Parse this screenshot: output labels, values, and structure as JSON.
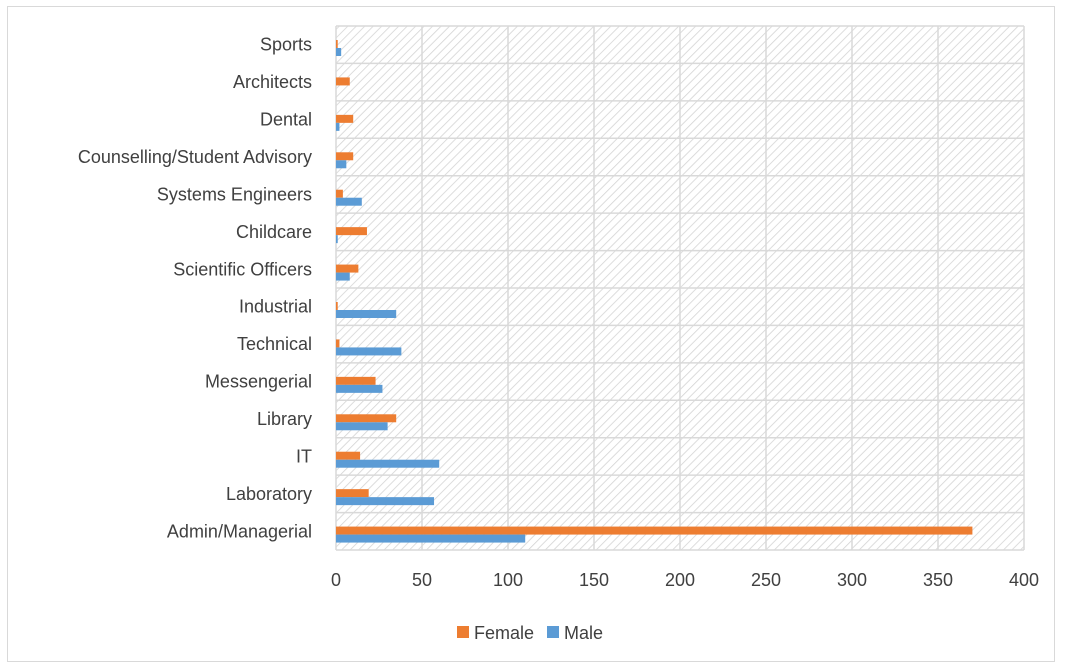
{
  "chart_data": {
    "type": "bar",
    "orientation": "horizontal",
    "categories": [
      "Sports",
      "Architects",
      "Dental",
      "Counselling/Student Advisory",
      "Systems Engineers",
      "Childcare",
      "Scientific Officers",
      "Industrial",
      "Technical",
      "Messengerial",
      "Library",
      "IT",
      "Laboratory",
      "Admin/Managerial"
    ],
    "series": [
      {
        "name": "Female",
        "color": "#ed7d31",
        "values": [
          1,
          8,
          10,
          10,
          4,
          18,
          13,
          1,
          2,
          23,
          35,
          14,
          19,
          370
        ]
      },
      {
        "name": "Male",
        "color": "#5b9bd5",
        "values": [
          3,
          0,
          2,
          6,
          15,
          1,
          8,
          35,
          38,
          27,
          30,
          60,
          57,
          110
        ]
      }
    ],
    "xlim": [
      0,
      400
    ],
    "x_ticks": [
      "0",
      "50",
      "100",
      "150",
      "200",
      "250",
      "300",
      "350",
      "400"
    ],
    "grid": true,
    "plot_fill": "diagonal-hatch",
    "legend_position": "bottom",
    "title": "",
    "xlabel": "",
    "ylabel": ""
  }
}
